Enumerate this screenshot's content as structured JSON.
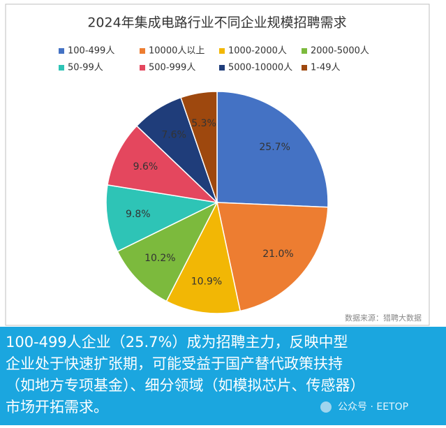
{
  "chart_data": {
    "type": "pie",
    "title": "2024年集成电路行业不同企业规模招聘需求",
    "categories": [
      "100-499人",
      "10000人以上",
      "1000-2000人",
      "2000-5000人",
      "50-99人",
      "500-999人",
      "5000-10000人",
      "1-49人"
    ],
    "values": [
      25.7,
      21.0,
      10.9,
      10.2,
      9.8,
      9.6,
      7.6,
      5.3
    ],
    "value_labels": [
      "25.7%",
      "21.0%",
      "10.9%",
      "10.2%",
      "9.8%",
      "9.6%",
      "7.6%",
      "5.3%"
    ],
    "colors": [
      "#4472c4",
      "#ed7d31",
      "#f2b705",
      "#7cba3d",
      "#2ec4b6",
      "#e4475e",
      "#1f3d7a",
      "#9e480e"
    ],
    "legend": "top",
    "source": "数据来源：猎聘大数据"
  },
  "caption": {
    "lines": [
      "100-499人企业（25.7%）成为招聘主力，反映中型",
      "企业处于快速扩张期，可能受益于国产替代政策扶持",
      "（如地方专项基金）、细分领域（如模拟芯片、传感器）",
      "市场开拓需求。"
    ],
    "watermark": "公众号 · EETOP"
  }
}
